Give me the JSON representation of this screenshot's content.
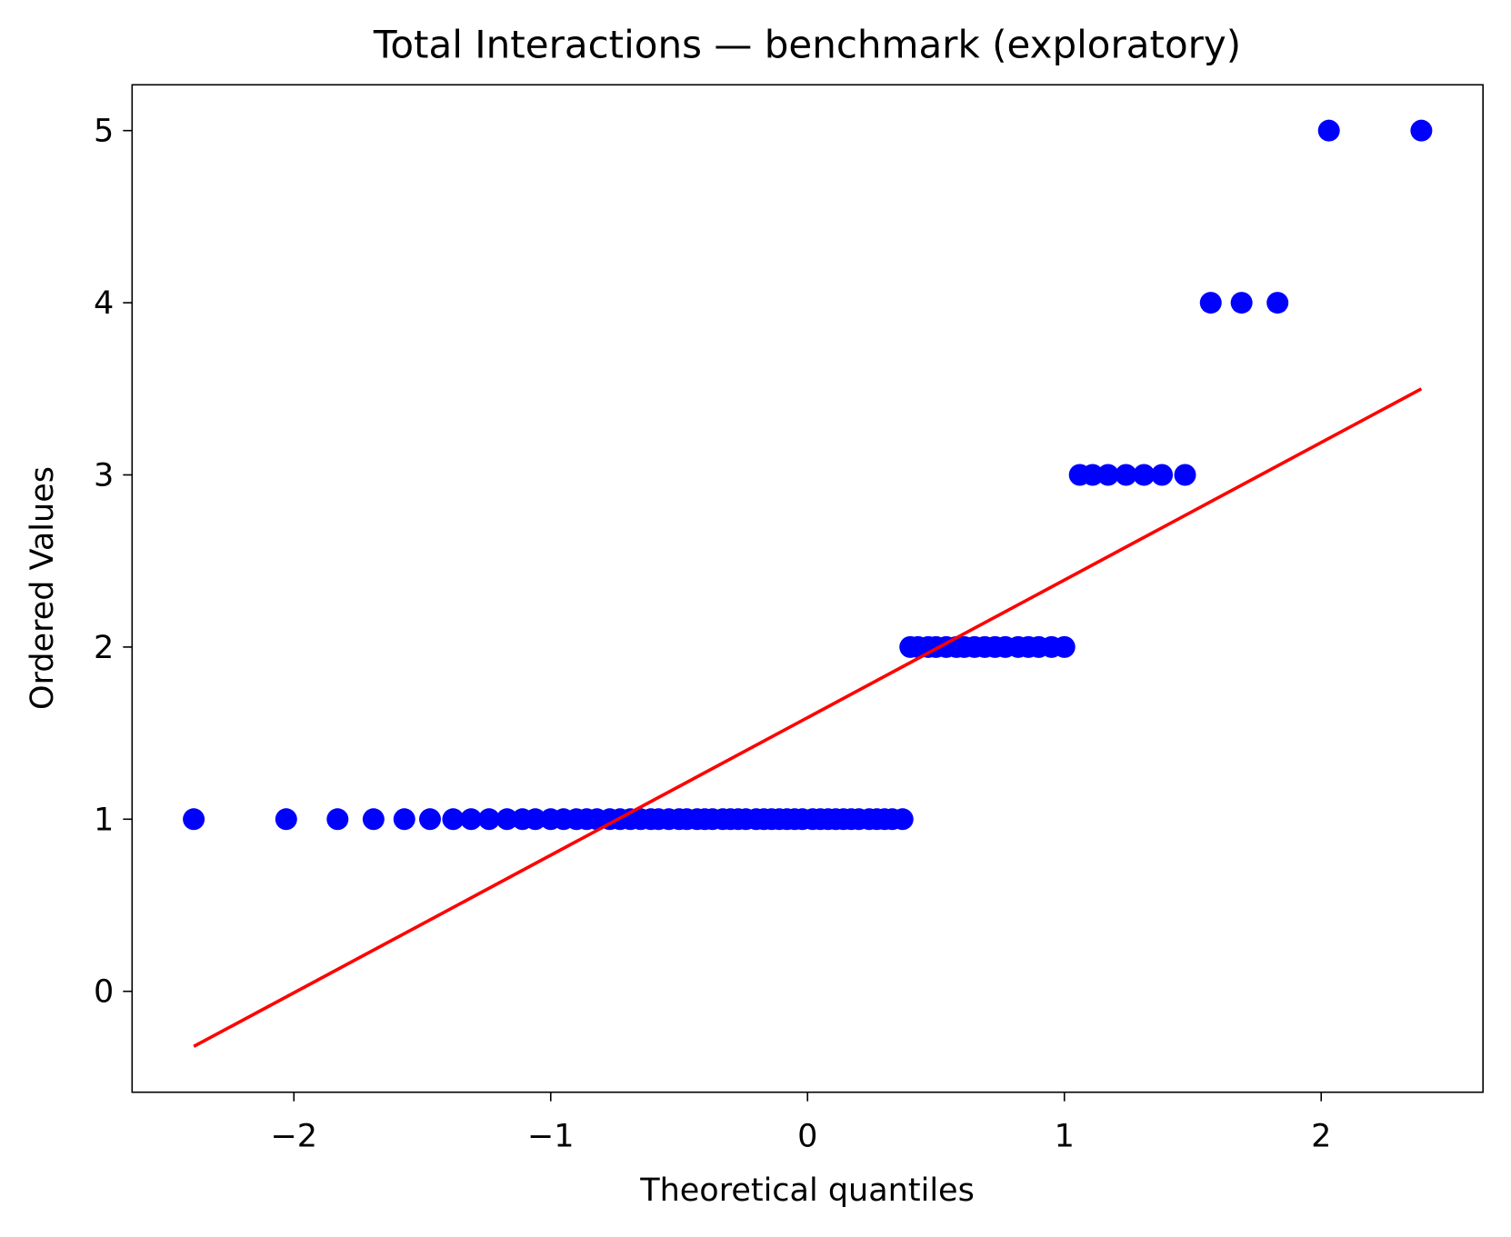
{
  "chart_data": {
    "type": "scatter",
    "title": "Total Interactions — benchmark (exploratory)",
    "xlabel": "Theoretical quantiles",
    "ylabel": "Ordered Values",
    "xlim": [
      -2.63,
      2.63
    ],
    "ylim": [
      -0.586,
      5.266
    ],
    "xticks": [
      {
        "value": -2,
        "label": "−2"
      },
      {
        "value": -1,
        "label": "−1"
      },
      0,
      1,
      2
    ],
    "yticks": [
      0,
      1,
      2,
      3,
      4,
      5
    ],
    "grid": false,
    "series": [
      {
        "type": "scatter",
        "color": "#0000ff",
        "x": [
          -2.39,
          -2.03,
          -1.83,
          -1.69,
          -1.57,
          -1.47,
          -1.38,
          -1.31,
          -1.24,
          -1.17,
          -1.11,
          -1.06,
          -1.0,
          -0.95,
          -0.9,
          -0.86,
          -0.82,
          -0.77,
          -0.73,
          -0.69,
          -0.65,
          -0.61,
          -0.58,
          -0.54,
          -0.5,
          -0.47,
          -0.43,
          -0.4,
          -0.37,
          -0.33,
          -0.3,
          -0.27,
          -0.24,
          -0.2,
          -0.17,
          -0.14,
          -0.11,
          -0.08,
          -0.05,
          -0.02,
          0.02,
          0.05,
          0.08,
          0.11,
          0.14,
          0.17,
          0.2,
          0.24,
          0.27,
          0.3,
          0.33,
          0.37,
          0.4,
          0.43,
          0.47,
          0.5,
          0.54,
          0.58,
          0.61,
          0.65,
          0.69,
          0.73,
          0.77,
          0.82,
          0.86,
          0.9,
          0.95,
          1.0,
          1.06,
          1.11,
          1.17,
          1.24,
          1.31,
          1.38,
          1.47,
          1.57,
          1.69,
          1.83,
          2.03,
          2.39
        ],
        "values": [
          1,
          1,
          1,
          1,
          1,
          1,
          1,
          1,
          1,
          1,
          1,
          1,
          1,
          1,
          1,
          1,
          1,
          1,
          1,
          1,
          1,
          1,
          1,
          1,
          1,
          1,
          1,
          1,
          1,
          1,
          1,
          1,
          1,
          1,
          1,
          1,
          1,
          1,
          1,
          1,
          1,
          1,
          1,
          1,
          1,
          1,
          1,
          1,
          1,
          1,
          1,
          1,
          2,
          2,
          2,
          2,
          2,
          2,
          2,
          2,
          2,
          2,
          2,
          2,
          2,
          2,
          2,
          2,
          3,
          3,
          3,
          3,
          3,
          3,
          3,
          4,
          4,
          4,
          5,
          5
        ]
      },
      {
        "type": "line",
        "color": "#ff0000",
        "x": [
          -2.39,
          2.39
        ],
        "values": [
          -0.32,
          3.5
        ]
      }
    ]
  }
}
